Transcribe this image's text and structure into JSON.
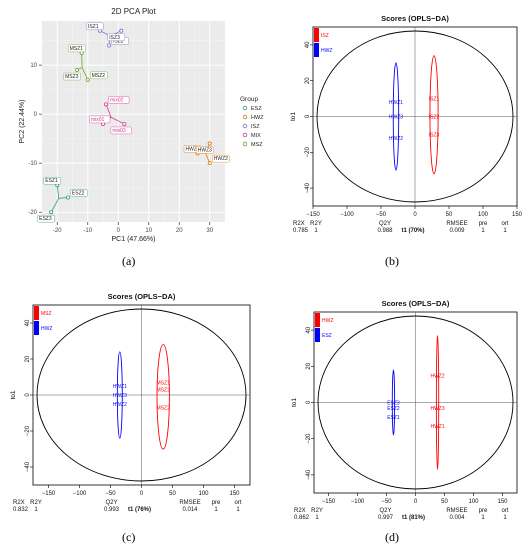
{
  "figure": {
    "panel_letters": [
      "(a)",
      "(b)",
      "(c)",
      "(d)"
    ]
  },
  "chart_data": [
    {
      "type": "scatter",
      "title": "2D PCA Plot",
      "xlabel": "PC1 (47.66%)",
      "ylabel": "PC2 (22.44%)",
      "xlim": [
        -25,
        35
      ],
      "ylim": [
        -22,
        19
      ],
      "xticks": [
        -20,
        -10,
        0,
        10,
        20,
        30
      ],
      "yticks": [
        -20,
        -10,
        0,
        10
      ],
      "grid": true,
      "legend": {
        "title": "Group",
        "placement": "right",
        "entries": [
          {
            "name": "ESZ",
            "color": "#2e9e7e"
          },
          {
            "name": "HWZ",
            "color": "#e07a10"
          },
          {
            "name": "ISZ",
            "color": "#7b74c8"
          },
          {
            "name": "MIX",
            "color": "#d63a8c"
          },
          {
            "name": "MSZ",
            "color": "#6aa82b"
          }
        ]
      },
      "groups": [
        {
          "name": "ESZ",
          "color": "#2e9e7e",
          "points": [
            {
              "label": "ESZ1",
              "x": -20,
              "y": -14.5
            },
            {
              "label": "ESZ2",
              "x": -16.5,
              "y": -17
            },
            {
              "label": "ESZ3",
              "x": -22,
              "y": -20
            }
          ]
        },
        {
          "name": "HWZ",
          "color": "#e07a10",
          "points": [
            {
              "label": "HWZ1",
              "x": 26,
              "y": -8
            },
            {
              "label": "HWZ2",
              "x": 30,
              "y": -10
            },
            {
              "label": "HWZ3",
              "x": 30,
              "y": -6
            }
          ]
        },
        {
          "name": "ISZ",
          "color": "#7b74c8",
          "points": [
            {
              "label": "ISZ1",
              "x": -6,
              "y": 17
            },
            {
              "label": "ISZ2",
              "x": -3,
              "y": 14
            },
            {
              "label": "ISZ3",
              "x": 1,
              "y": 17
            }
          ]
        },
        {
          "name": "MIX",
          "color": "#d63a8c",
          "points": [
            {
              "label": "mix01",
              "x": -5,
              "y": -2
            },
            {
              "label": "mix02",
              "x": -4,
              "y": 2
            },
            {
              "label": "mix03",
              "x": 2,
              "y": -2
            }
          ]
        },
        {
          "name": "MSZ",
          "color": "#6aa82b",
          "points": [
            {
              "label": "MSZ1",
              "x": -12,
              "y": 12.5
            },
            {
              "label": "MSZ2",
              "x": -10,
              "y": 7
            },
            {
              "label": "MSZ3",
              "x": -13.5,
              "y": 9
            }
          ]
        }
      ]
    },
    {
      "type": "scatter",
      "title": "Scores (OPLS−DA)",
      "xlabel": "t1 (70%)",
      "ylabel": "to1",
      "xlim": [
        -150,
        150
      ],
      "ylim": [
        -50,
        50
      ],
      "xticks": [
        -150,
        -100,
        -50,
        0,
        50,
        100,
        150
      ],
      "yticks": [
        -40,
        -20,
        0,
        20,
        40
      ],
      "legend": {
        "placement": "top-left",
        "entries": [
          {
            "name": "ISZ",
            "color": "#ff0000"
          },
          {
            "name": "HWZ",
            "color": "#0000ff"
          }
        ]
      },
      "groups": [
        {
          "name": "ISZ",
          "color": "#ff0000",
          "x": 28,
          "points": [
            {
              "label": "ISZ1",
              "y": 10
            },
            {
              "label": "ISZ2",
              "y": 0
            },
            {
              "label": "ISZ3",
              "y": -10
            }
          ],
          "ellipse": [
            22,
            34,
            -32,
            34
          ]
        },
        {
          "name": "HWZ",
          "color": "#0000ff",
          "x": -28,
          "points": [
            {
              "label": "HWZ1",
              "y": 8
            },
            {
              "label": "HWZ3",
              "y": 0
            },
            {
              "label": "HWZ2",
              "y": -12
            }
          ],
          "ellipse": [
            -32,
            -24,
            -30,
            30
          ]
        }
      ],
      "stats": {
        "headers": [
          "R2X",
          "R2Y",
          "Q2Y",
          "RMSEE",
          "pre",
          "ort"
        ],
        "values": [
          "0.785",
          "1",
          "0.988",
          "0.009",
          "1",
          "1"
        ]
      }
    },
    {
      "type": "scatter",
      "title": "Scores (OPLS−DA)",
      "xlabel": "t1 (76%)",
      "ylabel": "to1",
      "xlim": [
        -175,
        175
      ],
      "ylim": [
        -50,
        50
      ],
      "xticks": [
        -150,
        -100,
        -50,
        0,
        50,
        100,
        150
      ],
      "yticks": [
        -40,
        -20,
        0,
        20,
        40
      ],
      "legend": {
        "placement": "top-left",
        "entries": [
          {
            "name": "MSZ",
            "color": "#ff0000"
          },
          {
            "name": "HWZ",
            "color": "#0000ff"
          }
        ]
      },
      "groups": [
        {
          "name": "MSZ",
          "color": "#ff0000",
          "x": 35,
          "points": [
            {
              "label": "MSZ1",
              "y": 7
            },
            {
              "label": "MSZ3",
              "y": 3
            },
            {
              "label": "MSZ2",
              "y": -7
            }
          ],
          "ellipse": [
            25,
            45,
            -30,
            28
          ]
        },
        {
          "name": "HWZ",
          "color": "#0000ff",
          "x": -35,
          "points": [
            {
              "label": "HWZ1",
              "y": 5
            },
            {
              "label": "HWZ3",
              "y": 0
            },
            {
              "label": "HWZ2",
              "y": -5
            }
          ],
          "ellipse": [
            -39,
            -31,
            -24,
            24
          ]
        }
      ],
      "stats": {
        "headers": [
          "R2X",
          "R2Y",
          "Q2Y",
          "RMSEE",
          "pre",
          "ort"
        ],
        "values": [
          "0.832",
          "1",
          "0.993",
          "0.014",
          "1",
          "1"
        ]
      }
    },
    {
      "type": "scatter",
      "title": "Scores (OPLS−DA)",
      "xlabel": "t1 (81%)",
      "ylabel": "to1",
      "xlim": [
        -175,
        175
      ],
      "ylim": [
        -50,
        50
      ],
      "xticks": [
        -150,
        -100,
        -50,
        0,
        50,
        100,
        150
      ],
      "yticks": [
        -40,
        -20,
        0,
        20,
        40
      ],
      "legend": {
        "placement": "top-left",
        "entries": [
          {
            "name": "HWZ",
            "color": "#ff0000"
          },
          {
            "name": "ESZ",
            "color": "#0000ff"
          }
        ]
      },
      "groups": [
        {
          "name": "HWZ",
          "color": "#ff0000",
          "x": 38,
          "points": [
            {
              "label": "HWZ2",
              "y": 15
            },
            {
              "label": "HWZ3",
              "y": -3
            },
            {
              "label": "HWZ1",
              "y": -13
            }
          ],
          "ellipse": [
            36,
            40,
            -37,
            37
          ]
        },
        {
          "name": "ESZ",
          "color": "#0000ff",
          "x": -38,
          "points": [
            {
              "label": "ESZ3",
              "y": 0
            },
            {
              "label": "ESZ2",
              "y": -3
            },
            {
              "label": "ESZ1",
              "y": -8
            }
          ],
          "ellipse": [
            -40,
            -36,
            -18,
            18
          ]
        }
      ],
      "stats": {
        "headers": [
          "R2X",
          "R2Y",
          "Q2Y",
          "RMSEE",
          "pre",
          "ort"
        ],
        "values": [
          "0.862",
          "1",
          "0.997",
          "0.004",
          "1",
          "1"
        ]
      }
    }
  ]
}
